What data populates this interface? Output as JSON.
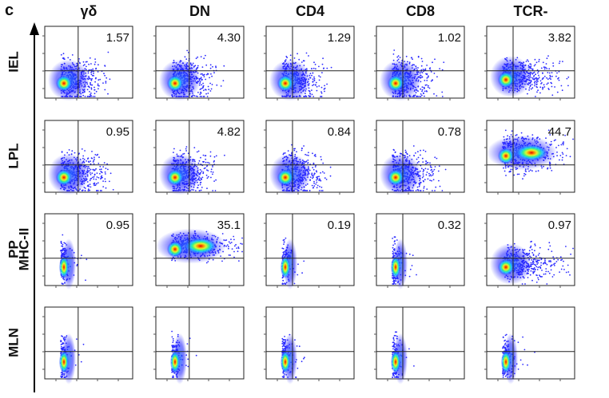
{
  "panel_letter": "c",
  "y_axis_label": "MHC-II",
  "chart_data": {
    "type": "scatter",
    "subtype": "flow-cytometry-density-plot-grid",
    "columns": [
      "γδ",
      "DN",
      "CD4",
      "CD8",
      "TCR-"
    ],
    "rows": [
      "IEL",
      "LPL",
      "PP",
      "MLN"
    ],
    "y_axis_label": "MHC-II",
    "quadrant_percentages": [
      [
        "1.57",
        "4.30",
        "1.29",
        "1.02",
        "3.82"
      ],
      [
        "0.95",
        "4.82",
        "0.84",
        "0.78",
        "44.7"
      ],
      [
        "0.95",
        "35.1",
        "0.19",
        "0.32",
        "0.97"
      ],
      [
        "",
        "",
        "",
        "",
        ""
      ]
    ],
    "density_colors": [
      "#1a1aff",
      "#2e7bff",
      "#19d3ff",
      "#3cff7a",
      "#e6ff2a",
      "#ff8a00",
      "#e00000"
    ]
  }
}
